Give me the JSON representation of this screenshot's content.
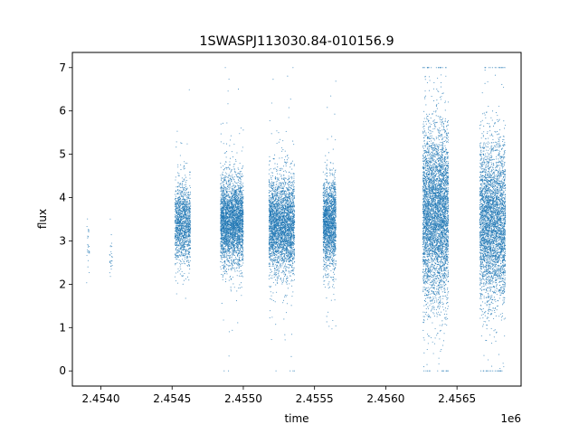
{
  "chart_data": {
    "type": "scatter",
    "title": "1SWASPJ113030.84-010156.9",
    "xlabel": "time",
    "ylabel": "flux",
    "x_offset_label": "1e6",
    "xlim": [
      2.4538,
      2.45695
    ],
    "ylim": [
      -0.35,
      7.35
    ],
    "x_ticks": [
      {
        "value": 2.454,
        "label": "2.4540"
      },
      {
        "value": 2.4545,
        "label": "2.4545"
      },
      {
        "value": 2.455,
        "label": "2.4550"
      },
      {
        "value": 2.4555,
        "label": "2.4555"
      },
      {
        "value": 2.456,
        "label": "2.4560"
      },
      {
        "value": 2.4565,
        "label": "2.4565"
      }
    ],
    "y_ticks": [
      {
        "value": 0,
        "label": "0"
      },
      {
        "value": 1,
        "label": "1"
      },
      {
        "value": 2,
        "label": "2"
      },
      {
        "value": 3,
        "label": "3"
      },
      {
        "value": 4,
        "label": "4"
      },
      {
        "value": 5,
        "label": "5"
      },
      {
        "value": 6,
        "label": "6"
      },
      {
        "value": 7,
        "label": "7"
      }
    ],
    "marker_color": "#1f77b4",
    "grid": false,
    "series": [
      {
        "observing_seasons": [
          {
            "t_start": 2.4539,
            "t_end": 2.45392,
            "flux_center": 3.0,
            "flux_spread": 0.35,
            "n_points": 25
          },
          {
            "t_start": 2.45406,
            "t_end": 2.45408,
            "flux_center": 2.6,
            "flux_spread": 0.2,
            "n_points": 25
          },
          {
            "t_start": 2.45452,
            "t_end": 2.45463,
            "flux_center": 3.4,
            "flux_spread": 0.45,
            "n_points": 1400
          },
          {
            "t_start": 2.45484,
            "t_end": 2.455,
            "flux_center": 3.45,
            "flux_spread": 0.5,
            "n_points": 3200
          },
          {
            "t_start": 2.45518,
            "t_end": 2.45536,
            "flux_center": 3.4,
            "flux_spread": 0.55,
            "n_points": 3200
          },
          {
            "t_start": 2.45556,
            "t_end": 2.45565,
            "flux_center": 3.4,
            "flux_spread": 0.5,
            "n_points": 1800
          },
          {
            "t_start": 2.45626,
            "t_end": 2.45644,
            "flux_center": 3.6,
            "flux_spread": 1.0,
            "n_points": 4500
          },
          {
            "t_start": 2.45666,
            "t_end": 2.45684,
            "flux_center": 3.4,
            "flux_spread": 0.9,
            "n_points": 3800
          }
        ]
      }
    ]
  }
}
